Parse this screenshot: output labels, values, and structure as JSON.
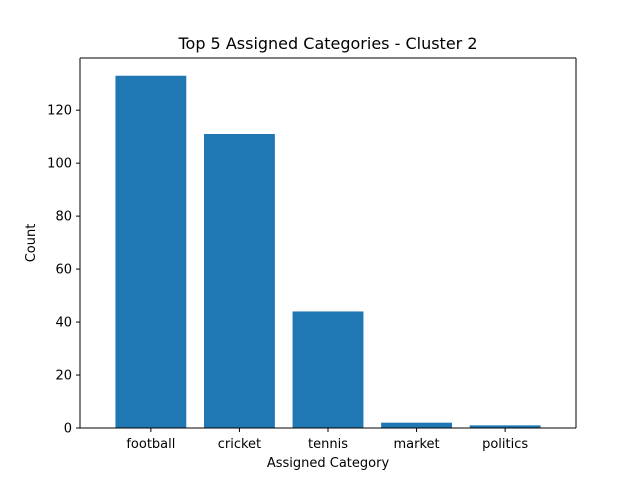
{
  "chart_data": {
    "type": "bar",
    "title": "Top 5 Assigned Categories - Cluster 2",
    "xlabel": "Assigned Category",
    "ylabel": "Count",
    "categories": [
      "football",
      "cricket",
      "tennis",
      "market",
      "politics"
    ],
    "values": [
      133,
      111,
      44,
      2,
      1
    ],
    "ylim": [
      0,
      139.7
    ],
    "yticks": [
      0,
      20,
      40,
      60,
      80,
      100,
      120
    ],
    "bar_color": "#1f77b4",
    "grid": false,
    "legend": "none"
  }
}
